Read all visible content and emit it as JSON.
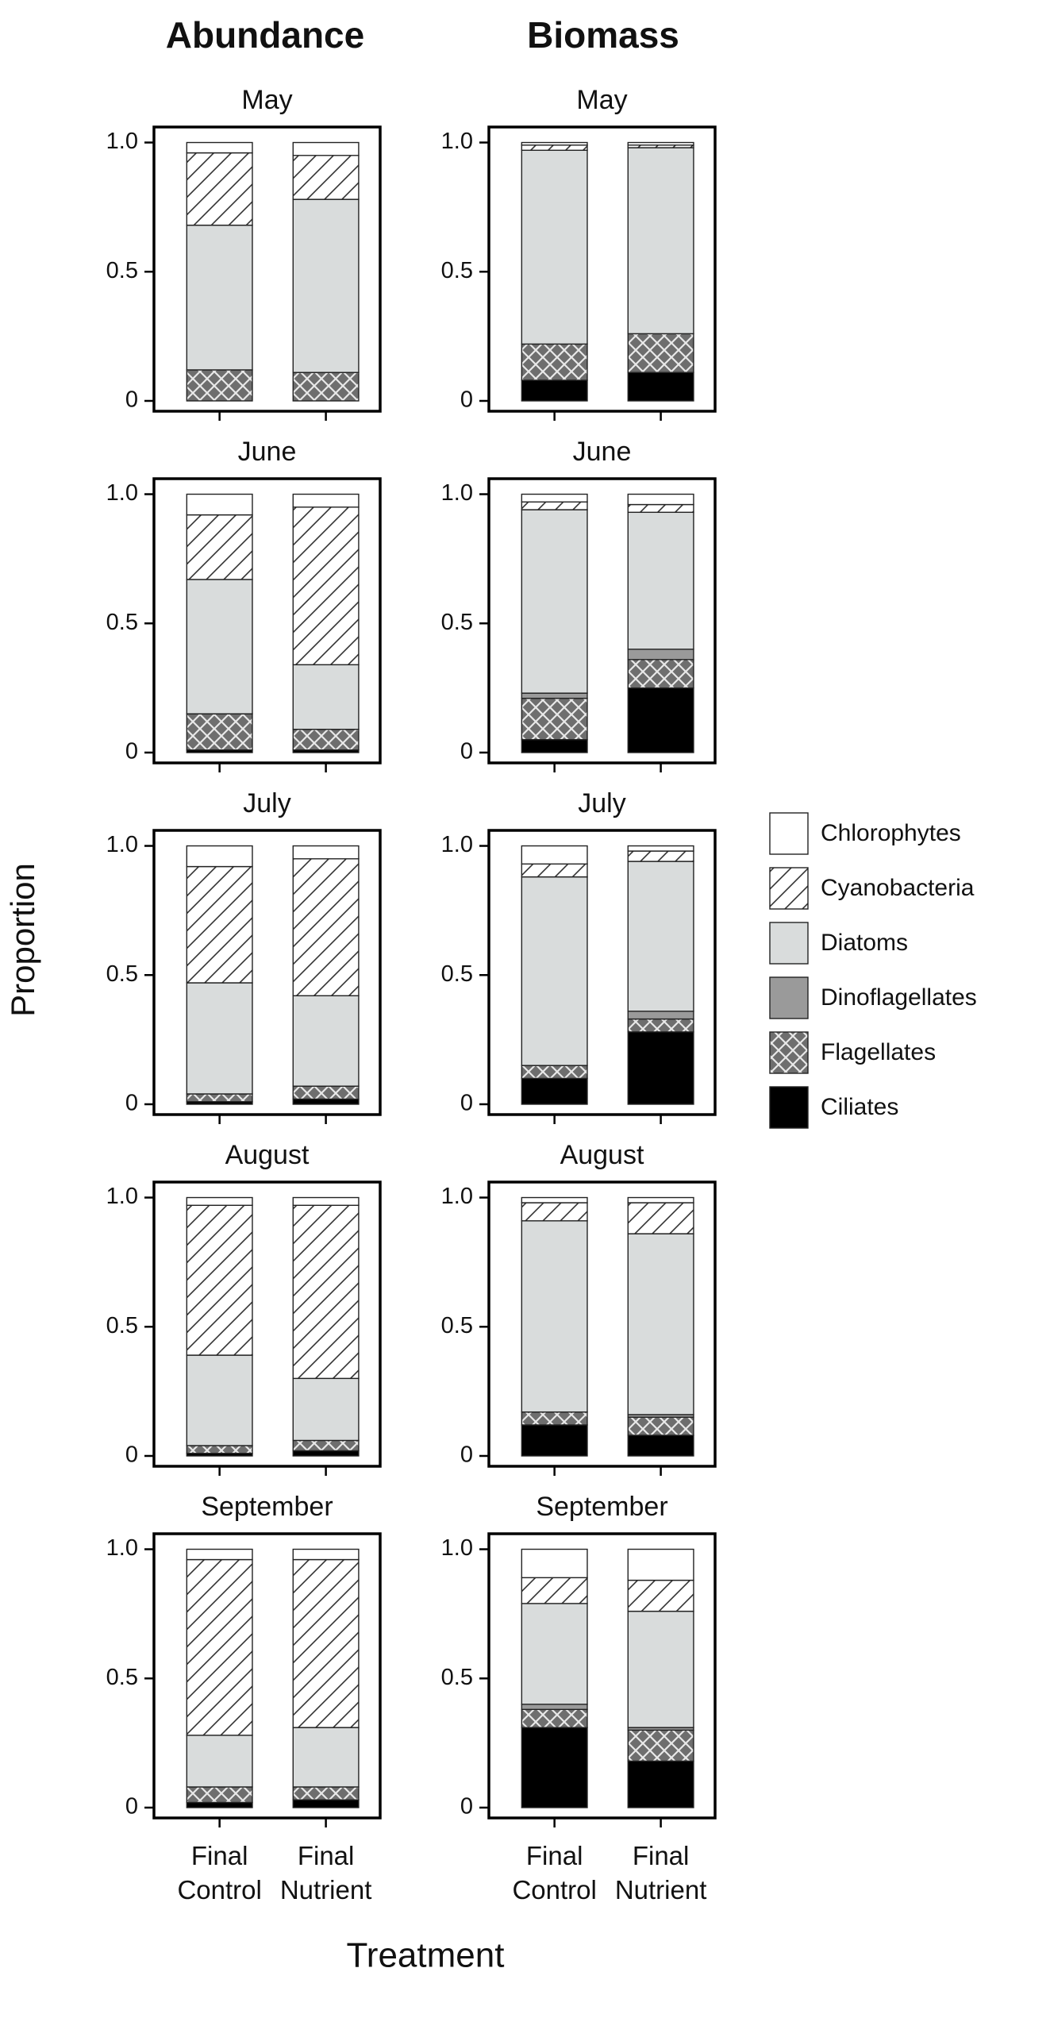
{
  "column_titles": [
    "Abundance",
    "Biomass"
  ],
  "y_label": "Proportion",
  "x_label": "Treatment",
  "chart_data": [
    {
      "type": "bar",
      "stacked": true,
      "title": "May",
      "ylim": [
        -0.04,
        1.06
      ],
      "yticks": [
        0,
        0.5,
        {
          "value": 1,
          "label": "1.0"
        }
      ],
      "series": [
        {
          "name": "Ciliates",
          "color": "#000000",
          "values": [
            0,
            0
          ]
        },
        {
          "name": "Flagellates",
          "color": "#7a7a7a",
          "pattern": "crosshatch",
          "values": [
            0.12,
            0.11
          ]
        },
        {
          "name": "Dinoflagellates",
          "color": "#9a9a9a",
          "values": [
            0,
            0
          ]
        },
        {
          "name": "Diatoms",
          "color": "#d9dcdc",
          "values": [
            0.56,
            0.67
          ]
        },
        {
          "name": "Cyanobacteria",
          "color": "#ffffff",
          "pattern": "hatch",
          "values": [
            0.28,
            0.17
          ]
        },
        {
          "name": "Chlorophytes",
          "color": "#ffffff",
          "values": [
            0.04,
            0.05
          ]
        }
      ]
    },
    {
      "type": "bar",
      "stacked": true,
      "title": "June",
      "ylim": [
        -0.04,
        1.06
      ],
      "yticks": [
        0,
        0.5,
        {
          "value": 1,
          "label": "1.0"
        }
      ],
      "series": [
        {
          "name": "Ciliates",
          "color": "#000000",
          "values": [
            0.01,
            0.01
          ]
        },
        {
          "name": "Flagellates",
          "color": "#7a7a7a",
          "pattern": "crosshatch",
          "values": [
            0.14,
            0.08
          ]
        },
        {
          "name": "Dinoflagellates",
          "color": "#9a9a9a",
          "values": [
            0,
            0
          ]
        },
        {
          "name": "Diatoms",
          "color": "#d9dcdc",
          "values": [
            0.52,
            0.25
          ]
        },
        {
          "name": "Cyanobacteria",
          "color": "#ffffff",
          "pattern": "hatch",
          "values": [
            0.25,
            0.61
          ]
        },
        {
          "name": "Chlorophytes",
          "color": "#ffffff",
          "values": [
            0.08,
            0.05
          ]
        }
      ]
    },
    {
      "type": "bar",
      "stacked": true,
      "title": "July",
      "ylim": [
        -0.04,
        1.06
      ],
      "yticks": [
        0,
        0.5,
        {
          "value": 1,
          "label": "1.0"
        }
      ],
      "series": [
        {
          "name": "Ciliates",
          "color": "#000000",
          "values": [
            0.01,
            0.02
          ]
        },
        {
          "name": "Flagellates",
          "color": "#7a7a7a",
          "pattern": "crosshatch",
          "values": [
            0.03,
            0.05
          ]
        },
        {
          "name": "Dinoflagellates",
          "color": "#9a9a9a",
          "values": [
            0,
            0
          ]
        },
        {
          "name": "Diatoms",
          "color": "#d9dcdc",
          "values": [
            0.43,
            0.35
          ]
        },
        {
          "name": "Cyanobacteria",
          "color": "#ffffff",
          "pattern": "hatch",
          "values": [
            0.45,
            0.53
          ]
        },
        {
          "name": "Chlorophytes",
          "color": "#ffffff",
          "values": [
            0.08,
            0.05
          ]
        }
      ]
    },
    {
      "type": "bar",
      "stacked": true,
      "title": "August",
      "ylim": [
        -0.04,
        1.06
      ],
      "yticks": [
        0,
        0.5,
        {
          "value": 1,
          "label": "1.0"
        }
      ],
      "series": [
        {
          "name": "Ciliates",
          "color": "#000000",
          "values": [
            0.01,
            0.02
          ]
        },
        {
          "name": "Flagellates",
          "color": "#7a7a7a",
          "pattern": "crosshatch",
          "values": [
            0.03,
            0.04
          ]
        },
        {
          "name": "Dinoflagellates",
          "color": "#9a9a9a",
          "values": [
            0,
            0
          ]
        },
        {
          "name": "Diatoms",
          "color": "#d9dcdc",
          "values": [
            0.35,
            0.24
          ]
        },
        {
          "name": "Cyanobacteria",
          "color": "#ffffff",
          "pattern": "hatch",
          "values": [
            0.58,
            0.67
          ]
        },
        {
          "name": "Chlorophytes",
          "color": "#ffffff",
          "values": [
            0.03,
            0.03
          ]
        }
      ]
    },
    {
      "type": "bar",
      "stacked": true,
      "title": "September",
      "categories": [
        "Final Control",
        "Final Nutrient"
      ],
      "ylim": [
        -0.04,
        1.06
      ],
      "yticks": [
        0,
        0.5,
        {
          "value": 1,
          "label": "1.0"
        }
      ],
      "series": [
        {
          "name": "Ciliates",
          "color": "#000000",
          "values": [
            0.02,
            0.03
          ]
        },
        {
          "name": "Flagellates",
          "color": "#7a7a7a",
          "pattern": "crosshatch",
          "values": [
            0.06,
            0.05
          ]
        },
        {
          "name": "Dinoflagellates",
          "color": "#9a9a9a",
          "values": [
            0,
            0
          ]
        },
        {
          "name": "Diatoms",
          "color": "#d9dcdc",
          "values": [
            0.2,
            0.23
          ]
        },
        {
          "name": "Cyanobacteria",
          "color": "#ffffff",
          "pattern": "hatch",
          "values": [
            0.68,
            0.65
          ]
        },
        {
          "name": "Chlorophytes",
          "color": "#ffffff",
          "values": [
            0.04,
            0.04
          ]
        }
      ]
    },
    {
      "type": "bar",
      "stacked": true,
      "title": "May",
      "ylim": [
        -0.04,
        1.06
      ],
      "yticks": [
        0,
        0.5,
        {
          "value": 1,
          "label": "1.0"
        }
      ],
      "series": [
        {
          "name": "Ciliates",
          "color": "#000000",
          "values": [
            0.08,
            0.11
          ]
        },
        {
          "name": "Flagellates",
          "color": "#7a7a7a",
          "pattern": "crosshatch",
          "values": [
            0.14,
            0.15
          ]
        },
        {
          "name": "Dinoflagellates",
          "color": "#9a9a9a",
          "values": [
            0,
            0
          ]
        },
        {
          "name": "Diatoms",
          "color": "#d9dcdc",
          "values": [
            0.75,
            0.72
          ]
        },
        {
          "name": "Cyanobacteria",
          "color": "#ffffff",
          "pattern": "hatch",
          "values": [
            0.02,
            0.01
          ]
        },
        {
          "name": "Chlorophytes",
          "color": "#ffffff",
          "values": [
            0.01,
            0.01
          ]
        }
      ]
    },
    {
      "type": "bar",
      "stacked": true,
      "title": "June",
      "ylim": [
        -0.04,
        1.06
      ],
      "yticks": [
        0,
        0.5,
        {
          "value": 1,
          "label": "1.0"
        }
      ],
      "series": [
        {
          "name": "Ciliates",
          "color": "#000000",
          "values": [
            0.05,
            0.25
          ]
        },
        {
          "name": "Flagellates",
          "color": "#7a7a7a",
          "pattern": "crosshatch",
          "values": [
            0.16,
            0.11
          ]
        },
        {
          "name": "Dinoflagellates",
          "color": "#9a9a9a",
          "values": [
            0.02,
            0.04
          ]
        },
        {
          "name": "Diatoms",
          "color": "#d9dcdc",
          "values": [
            0.71,
            0.53
          ]
        },
        {
          "name": "Cyanobacteria",
          "color": "#ffffff",
          "pattern": "hatch",
          "values": [
            0.03,
            0.03
          ]
        },
        {
          "name": "Chlorophytes",
          "color": "#ffffff",
          "values": [
            0.03,
            0.04
          ]
        }
      ]
    },
    {
      "type": "bar",
      "stacked": true,
      "title": "July",
      "ylim": [
        -0.04,
        1.06
      ],
      "yticks": [
        0,
        0.5,
        {
          "value": 1,
          "label": "1.0"
        }
      ],
      "series": [
        {
          "name": "Ciliates",
          "color": "#000000",
          "values": [
            0.1,
            0.28
          ]
        },
        {
          "name": "Flagellates",
          "color": "#7a7a7a",
          "pattern": "crosshatch",
          "values": [
            0.05,
            0.05
          ]
        },
        {
          "name": "Dinoflagellates",
          "color": "#9a9a9a",
          "values": [
            0,
            0.03
          ]
        },
        {
          "name": "Diatoms",
          "color": "#d9dcdc",
          "values": [
            0.73,
            0.58
          ]
        },
        {
          "name": "Cyanobacteria",
          "color": "#ffffff",
          "pattern": "hatch",
          "values": [
            0.05,
            0.04
          ]
        },
        {
          "name": "Chlorophytes",
          "color": "#ffffff",
          "values": [
            0.07,
            0.02
          ]
        }
      ]
    },
    {
      "type": "bar",
      "stacked": true,
      "title": "August",
      "ylim": [
        -0.04,
        1.06
      ],
      "yticks": [
        0,
        0.5,
        {
          "value": 1,
          "label": "1.0"
        }
      ],
      "series": [
        {
          "name": "Ciliates",
          "color": "#000000",
          "values": [
            0.12,
            0.08
          ]
        },
        {
          "name": "Flagellates",
          "color": "#7a7a7a",
          "pattern": "crosshatch",
          "values": [
            0.05,
            0.07
          ]
        },
        {
          "name": "Dinoflagellates",
          "color": "#9a9a9a",
          "values": [
            0,
            0.01
          ]
        },
        {
          "name": "Diatoms",
          "color": "#d9dcdc",
          "values": [
            0.74,
            0.7
          ]
        },
        {
          "name": "Cyanobacteria",
          "color": "#ffffff",
          "pattern": "hatch",
          "values": [
            0.07,
            0.12
          ]
        },
        {
          "name": "Chlorophytes",
          "color": "#ffffff",
          "values": [
            0.02,
            0.02
          ]
        }
      ]
    },
    {
      "type": "bar",
      "stacked": true,
      "title": "September",
      "categories": [
        "Final Control",
        "Final Nutrient"
      ],
      "ylim": [
        -0.04,
        1.06
      ],
      "yticks": [
        0,
        0.5,
        {
          "value": 1,
          "label": "1.0"
        }
      ],
      "series": [
        {
          "name": "Ciliates",
          "color": "#000000",
          "values": [
            0.31,
            0.18
          ]
        },
        {
          "name": "Flagellates",
          "color": "#7a7a7a",
          "pattern": "crosshatch",
          "values": [
            0.07,
            0.12
          ]
        },
        {
          "name": "Dinoflagellates",
          "color": "#9a9a9a",
          "values": [
            0.02,
            0.01
          ]
        },
        {
          "name": "Diatoms",
          "color": "#d9dcdc",
          "values": [
            0.39,
            0.45
          ]
        },
        {
          "name": "Cyanobacteria",
          "color": "#ffffff",
          "pattern": "hatch",
          "values": [
            0.1,
            0.12
          ]
        },
        {
          "name": "Chlorophytes",
          "color": "#ffffff",
          "values": [
            0.11,
            0.12
          ]
        }
      ]
    }
  ]
}
